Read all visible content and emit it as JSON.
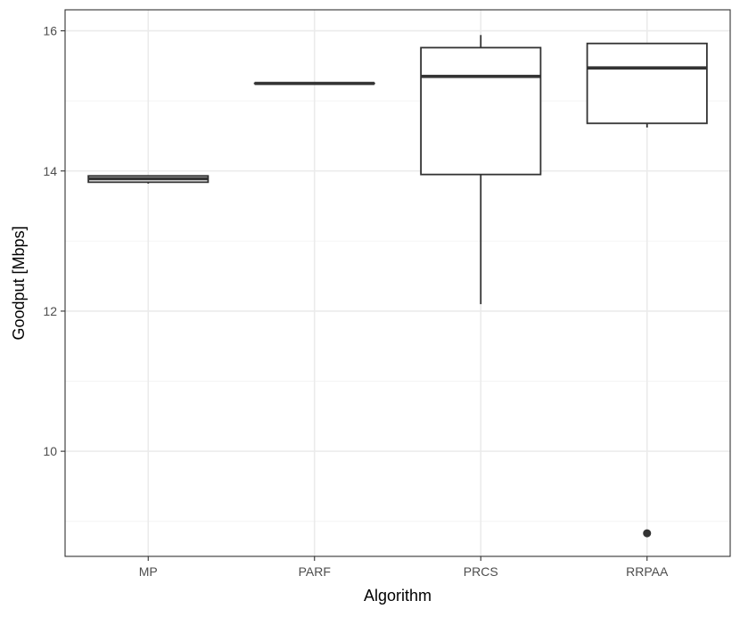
{
  "chart_data": {
    "type": "boxplot",
    "xlabel": "Algorithm",
    "ylabel": "Goodput [Mbps]",
    "ylim": [
      8.5,
      16.3
    ],
    "y_ticks": [
      10,
      12,
      14,
      16
    ],
    "y_minor_ticks": [
      9,
      11,
      13,
      15
    ],
    "grid": true,
    "theme": "black-and-white",
    "categories": [
      "MP",
      "PARF",
      "PRCS",
      "RRPAA"
    ],
    "boxes": [
      {
        "category": "MP",
        "whisker_low": 13.82,
        "q1": 13.84,
        "median": 13.89,
        "q3": 13.93,
        "whisker_high": 13.93,
        "outliers": []
      },
      {
        "category": "PARF",
        "whisker_low": 15.25,
        "q1": 15.25,
        "median": 15.25,
        "q3": 15.25,
        "whisker_high": 15.25,
        "outliers": []
      },
      {
        "category": "PRCS",
        "whisker_low": 12.1,
        "q1": 13.95,
        "median": 15.35,
        "q3": 15.76,
        "whisker_high": 15.94,
        "outliers": []
      },
      {
        "category": "RRPAA",
        "whisker_low": 14.62,
        "q1": 14.68,
        "median": 15.47,
        "q3": 15.82,
        "whisker_high": 15.82,
        "outliers": [
          8.83
        ]
      }
    ]
  },
  "colors": {
    "panel_border": "#333333",
    "grid_major": "#ebebeb",
    "grid_minor": "#f4f4f4",
    "box_line": "#333333",
    "median_line": "#333333",
    "outlier": "#333333",
    "tick_text": "#4d4d4d",
    "title_text": "#000000"
  }
}
